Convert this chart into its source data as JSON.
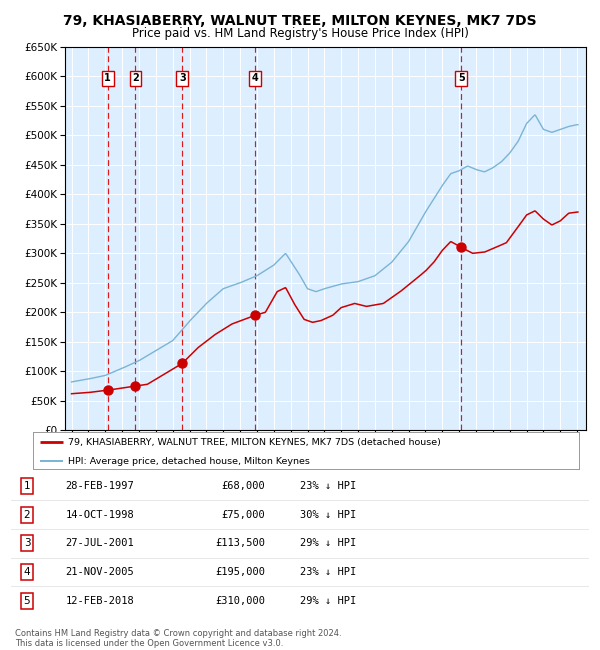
{
  "title": "79, KHASIABERRY, WALNUT TREE, MILTON KEYNES, MK7 7DS",
  "subtitle": "Price paid vs. HM Land Registry's House Price Index (HPI)",
  "transactions": [
    {
      "num": 1,
      "date": "28-FEB-1997",
      "year": 1997.15,
      "price": 68000,
      "pct": "23%",
      "dir": "↓"
    },
    {
      "num": 2,
      "date": "14-OCT-1998",
      "year": 1998.79,
      "price": 75000,
      "pct": "30%",
      "dir": "↓"
    },
    {
      "num": 3,
      "date": "27-JUL-2001",
      "year": 2001.57,
      "price": 113500,
      "pct": "29%",
      "dir": "↓"
    },
    {
      "num": 4,
      "date": "21-NOV-2005",
      "year": 2005.89,
      "price": 195000,
      "pct": "23%",
      "dir": "↓"
    },
    {
      "num": 5,
      "date": "12-FEB-2018",
      "year": 2018.12,
      "price": 310000,
      "pct": "29%",
      "dir": "↓"
    }
  ],
  "legend_house": "79, KHASIABERRY, WALNUT TREE, MILTON KEYNES, MK7 7DS (detached house)",
  "legend_hpi": "HPI: Average price, detached house, Milton Keynes",
  "footer": "Contains HM Land Registry data © Crown copyright and database right 2024.\nThis data is licensed under the Open Government Licence v3.0.",
  "house_color": "#cc0000",
  "hpi_color": "#7ab4d4",
  "bg_color": "#ddeeff",
  "yticks": [
    0,
    50000,
    100000,
    150000,
    200000,
    250000,
    300000,
    350000,
    400000,
    450000,
    500000,
    550000,
    600000,
    650000
  ]
}
